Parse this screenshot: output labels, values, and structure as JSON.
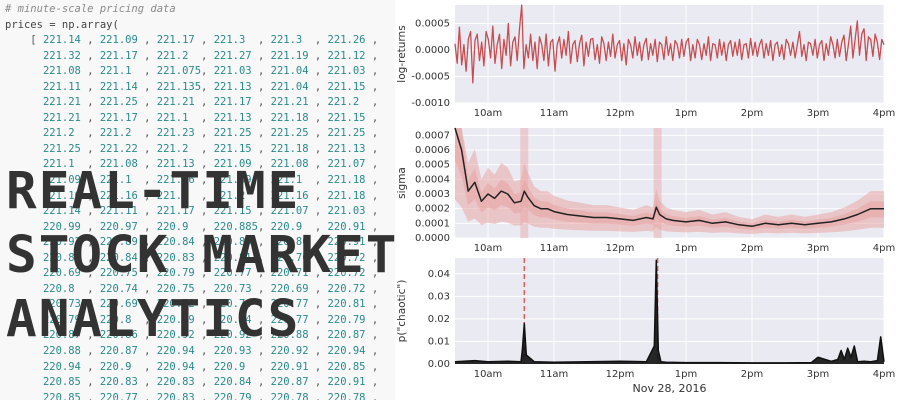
{
  "code": {
    "comment": "# minute-scale pricing data",
    "header": "prices = np.array(",
    "rows": [
      [
        "221.14",
        "221.09",
        "221.17",
        "221.3",
        "221.3",
        "221.26"
      ],
      [
        "221.32",
        "221.17",
        "221.2",
        "221.27",
        "221.19",
        "221.12"
      ],
      [
        "221.08",
        "221.1",
        "221.075",
        "221.03",
        "221.04",
        "221.03"
      ],
      [
        "221.11",
        "221.14",
        "221.135",
        "221.13",
        "221.04",
        "221.15"
      ],
      [
        "221.21",
        "221.25",
        "221.21",
        "221.17",
        "221.21",
        "221.2"
      ],
      [
        "221.21",
        "221.17",
        "221.1",
        "221.13",
        "221.18",
        "221.15"
      ],
      [
        "221.2",
        "221.2",
        "221.23",
        "221.25",
        "221.25",
        "221.25"
      ],
      [
        "221.25",
        "221.22",
        "221.2",
        "221.15",
        "221.18",
        "221.13"
      ],
      [
        "221.1",
        "221.08",
        "221.13",
        "221.09",
        "221.08",
        "221.07"
      ],
      [
        "221.09",
        "221.1",
        "221.06",
        "221.09",
        "221.1",
        "221.18"
      ],
      [
        "221.16",
        "221.16",
        "221.1",
        "221.2",
        "221.16",
        "221.18"
      ],
      [
        "221.14",
        "221.11",
        "221.17",
        "221.15",
        "221.07",
        "221.03"
      ],
      [
        "220.99",
        "220.97",
        "220.9",
        "220.885",
        "220.9",
        "220.91"
      ],
      [
        "220.92",
        "220.89",
        "220.84",
        "220.85",
        "220.86",
        "220.91"
      ],
      [
        "220.89",
        "220.84",
        "220.83",
        "220.81",
        "220.76",
        "220.72"
      ],
      [
        "220.69",
        "220.75",
        "220.79",
        "220.77",
        "220.71",
        "220.72"
      ],
      [
        "220.8",
        "220.74",
        "220.75",
        "220.73",
        "220.69",
        "220.72"
      ],
      [
        "220.73",
        "220.69",
        "220.72",
        "220.74",
        "220.77",
        "220.81"
      ],
      [
        "220.79",
        "220.8",
        "220.79",
        "220.74",
        "220.77",
        "220.79"
      ],
      [
        "220.87",
        "220.86",
        "220.92",
        "220.92",
        "220.88",
        "220.87"
      ],
      [
        "220.88",
        "220.87",
        "220.94",
        "220.93",
        "220.92",
        "220.94"
      ],
      [
        "220.94",
        "220.9",
        "220.94",
        "220.9",
        "220.91",
        "220.85"
      ],
      [
        "220.85",
        "220.83",
        "220.83",
        "220.84",
        "220.87",
        "220.91"
      ],
      [
        "220.85",
        "220.77",
        "220.83",
        "220.79",
        "220.78",
        "220.78"
      ]
    ]
  },
  "headline": [
    "REAL-TIME",
    "STOCK MARKET",
    "ANALYTICS"
  ],
  "colors": {
    "plot_bg": "#eaeaf2",
    "returns_line": "#c44e52",
    "sigma_line": "#222222",
    "sigma_band": "#e8a5a5",
    "prob_line": "#111111",
    "marker": "#e06060",
    "headline": "#333333"
  },
  "chart_data": [
    {
      "type": "line",
      "ylabel": "log-returns",
      "xlabel": "",
      "ylim": [
        -0.001,
        0.00085
      ],
      "yticks": [
        {
          "v": 0.0005,
          "label": "0.0005"
        },
        {
          "v": 0.0,
          "label": "0.0000"
        },
        {
          "v": -0.0005,
          "label": "-0.0005"
        },
        {
          "v": -0.001,
          "label": "-0.0010"
        }
      ],
      "xlim": [
        9.5,
        16.0
      ],
      "xticks": [
        {
          "v": 10,
          "label": "10am"
        },
        {
          "v": 11,
          "label": "11am"
        },
        {
          "v": 12,
          "label": "12pm"
        },
        {
          "v": 13,
          "label": "1pm"
        },
        {
          "v": 14,
          "label": "2pm"
        },
        {
          "v": 15,
          "label": "3pm"
        },
        {
          "v": 16,
          "label": "4pm"
        }
      ],
      "grid": true,
      "series": [
        {
          "x_start": 9.5,
          "x_end": 16.0,
          "values": [
            0.00012,
            -0.00025,
            0.00043,
            -0.00028,
            0.0001,
            -0.0004,
            0.0002,
            0.00035,
            -0.00062,
            0.00018,
            0.0003,
            -0.0002,
            0.00015,
            -0.0003,
            0.00035,
            0.0002,
            -0.00015,
            0.00045,
            -0.00025,
            0.0001,
            0.0003,
            -0.00035,
            0.0002,
            -0.0001,
            0.0005,
            -0.0003,
            0.00015,
            0.00025,
            -0.0002,
            0.0004,
            0.00085,
            -0.00035,
            0.0001,
            -0.00015,
            0.0003,
            -0.0002,
            0.00015,
            -0.00035,
            0.00025,
            0.0001,
            -0.0002,
            0.0003,
            -0.0003,
            0.00015,
            0.0002,
            -0.0004,
            0.0001,
            0.00025,
            -0.00015,
            0.0002,
            -0.0001,
            0.00035,
            -0.00025,
            0.0001,
            0.00018,
            -0.00022,
            0.00012,
            0.00028,
            -0.0003,
            0.00015,
            -0.00012,
            0.0002,
            0.00022,
            -0.00018,
            0.0001,
            -0.00025,
            0.00025,
            0.00012,
            -0.0002,
            0.00015,
            -0.00012,
            0.0003,
            -0.00015,
            0.0001,
            0.00018,
            -0.0002,
            0.00012,
            -0.00028,
            0.0002,
            0.0001,
            -0.00015,
            0.00025,
            -0.0001,
            0.00015,
            -0.0002,
            0.0001,
            0.00022,
            -0.00018,
            0.00012,
            -0.0001,
            0.0002,
            -0.00022,
            0.00015,
            0.0001,
            -0.00018,
            0.00025,
            -0.0001,
            0.00012,
            -0.0002,
            0.00018,
            0.0001,
            -0.00015,
            0.0002,
            -0.00012,
            0.00015,
            0.00022,
            -0.0002,
            0.0001,
            -0.00015,
            0.0002,
            0.0001,
            -0.00018,
            0.00012,
            -0.0001,
            0.00025,
            -0.0002,
            0.00012,
            0.0001,
            -0.00015,
            0.0002,
            -0.0001,
            0.00015,
            -0.0002,
            0.0001,
            0.00018,
            -0.00012,
            0.00015,
            -0.0001,
            0.0002,
            -0.00018,
            0.0001,
            0.00012,
            -0.00015,
            0.00022,
            -0.0001,
            0.00015,
            -0.00012,
            0.0001,
            0.0002,
            -0.00015,
            0.00012,
            -0.0001,
            0.00018,
            -0.0002,
            0.0001,
            0.00015,
            -0.00012,
            0.0001,
            -0.00018,
            0.0002,
            0.00012,
            -0.0001,
            0.00015,
            -0.00015,
            0.0001,
            0.00035,
            -0.00012,
            0.0001,
            -0.0002,
            0.00015,
            0.00012,
            -0.0001,
            0.0002,
            -0.00015,
            0.0001,
            0.00018,
            -0.0002,
            0.00012,
            -0.0001,
            0.00025,
            0.0001,
            -0.00015,
            0.0002,
            -0.00012,
            0.00015,
            0.00028,
            -0.0002,
            0.0001,
            0.00045,
            -0.00015,
            0.0002,
            0.00055,
            -0.0001,
            0.0003,
            0.0004,
            -0.0002,
            0.00025,
            0.0002,
            -0.00012,
            0.0003,
            0.00015,
            -0.00018,
            0.0002,
            0.0001
          ]
        }
      ]
    },
    {
      "type": "line",
      "ylabel": "sigma",
      "xlabel": "",
      "ylim": [
        0,
        0.00075
      ],
      "yticks": [
        {
          "v": 0.0,
          "label": "0.0000"
        },
        {
          "v": 0.0001,
          "label": "0.0001"
        },
        {
          "v": 0.0002,
          "label": "0.0002"
        },
        {
          "v": 0.0003,
          "label": "0.0003"
        },
        {
          "v": 0.0004,
          "label": "0.0004"
        },
        {
          "v": 0.0005,
          "label": "0.0005"
        },
        {
          "v": 0.0006,
          "label": "0.0006"
        },
        {
          "v": 0.0007,
          "label": "0.0007"
        }
      ],
      "xlim": [
        9.5,
        16.0
      ],
      "xticks": [
        {
          "v": 10,
          "label": "10am"
        },
        {
          "v": 11,
          "label": "11am"
        },
        {
          "v": 12,
          "label": "12pm"
        },
        {
          "v": 13,
          "label": "1pm"
        },
        {
          "v": 14,
          "label": "2pm"
        },
        {
          "v": 15,
          "label": "3pm"
        },
        {
          "v": 16,
          "label": "4pm"
        }
      ],
      "grid": true,
      "series": [
        {
          "x": [
            9.5,
            9.6,
            9.7,
            9.8,
            9.9,
            10.0,
            10.1,
            10.2,
            10.3,
            10.4,
            10.5,
            10.55,
            10.6,
            10.7,
            10.8,
            10.9,
            11.0,
            11.2,
            11.4,
            11.6,
            11.8,
            12.0,
            12.2,
            12.4,
            12.5,
            12.55,
            12.6,
            12.7,
            12.8,
            13.0,
            13.2,
            13.4,
            13.6,
            13.8,
            14.0,
            14.2,
            14.4,
            14.6,
            14.8,
            15.0,
            15.2,
            15.4,
            15.6,
            15.8,
            16.0
          ],
          "values": [
            0.00075,
            0.0006,
            0.00032,
            0.00038,
            0.00025,
            0.0003,
            0.00027,
            0.00032,
            0.0003,
            0.00024,
            0.00025,
            0.00032,
            0.00028,
            0.00022,
            0.0002,
            0.0002,
            0.00018,
            0.00016,
            0.00015,
            0.00014,
            0.00014,
            0.00013,
            0.00012,
            0.00014,
            0.00013,
            0.00021,
            0.00016,
            0.00013,
            0.00012,
            0.00011,
            0.00012,
            0.0001,
            0.00011,
            9e-05,
            8e-05,
            0.0001,
            9e-05,
            0.0001,
            9e-05,
            0.0001,
            0.00011,
            0.00013,
            0.00016,
            0.0002,
            0.0002
          ]
        }
      ]
    },
    {
      "type": "line",
      "ylabel": "p(\"chaotic\")",
      "xlabel": "Nov 28, 2016",
      "ylim": [
        0,
        0.047
      ],
      "yticks": [
        {
          "v": 0.0,
          "label": "0.00"
        },
        {
          "v": 0.01,
          "label": "0.01"
        },
        {
          "v": 0.02,
          "label": "0.02"
        },
        {
          "v": 0.03,
          "label": "0.03"
        },
        {
          "v": 0.04,
          "label": "0.04"
        }
      ],
      "xlim": [
        9.5,
        16.0
      ],
      "xticks": [
        {
          "v": 10,
          "label": "10am"
        },
        {
          "v": 11,
          "label": "11am"
        },
        {
          "v": 12,
          "label": "12pm"
        },
        {
          "v": 13,
          "label": "1pm"
        },
        {
          "v": 14,
          "label": "2pm"
        },
        {
          "v": 15,
          "label": "3pm"
        },
        {
          "v": 16,
          "label": "4pm"
        }
      ],
      "grid": true,
      "markers": [
        10.55,
        12.57
      ],
      "series": [
        {
          "x": [
            9.5,
            9.8,
            10.0,
            10.3,
            10.5,
            10.52,
            10.55,
            10.58,
            10.7,
            11.0,
            11.5,
            12.0,
            12.4,
            12.52,
            12.55,
            12.58,
            12.62,
            12.7,
            13.0,
            13.5,
            14.0,
            14.5,
            14.9,
            15.0,
            15.2,
            15.3,
            15.35,
            15.4,
            15.45,
            15.5,
            15.55,
            15.6,
            15.7,
            15.8,
            15.9,
            15.95,
            16.0
          ],
          "values": [
            0.001,
            0.0015,
            0.001,
            0.0012,
            0.001,
            0.006,
            0.018,
            0.004,
            0.001,
            0.0008,
            0.001,
            0.0012,
            0.001,
            0.008,
            0.046,
            0.006,
            0.001,
            0.0008,
            0.0006,
            0.0006,
            0.0005,
            0.0005,
            0.0006,
            0.003,
            0.0012,
            0.002,
            0.006,
            0.002,
            0.007,
            0.003,
            0.008,
            0.001,
            0.0012,
            0.001,
            0.0015,
            0.012,
            0.001
          ]
        }
      ]
    }
  ]
}
